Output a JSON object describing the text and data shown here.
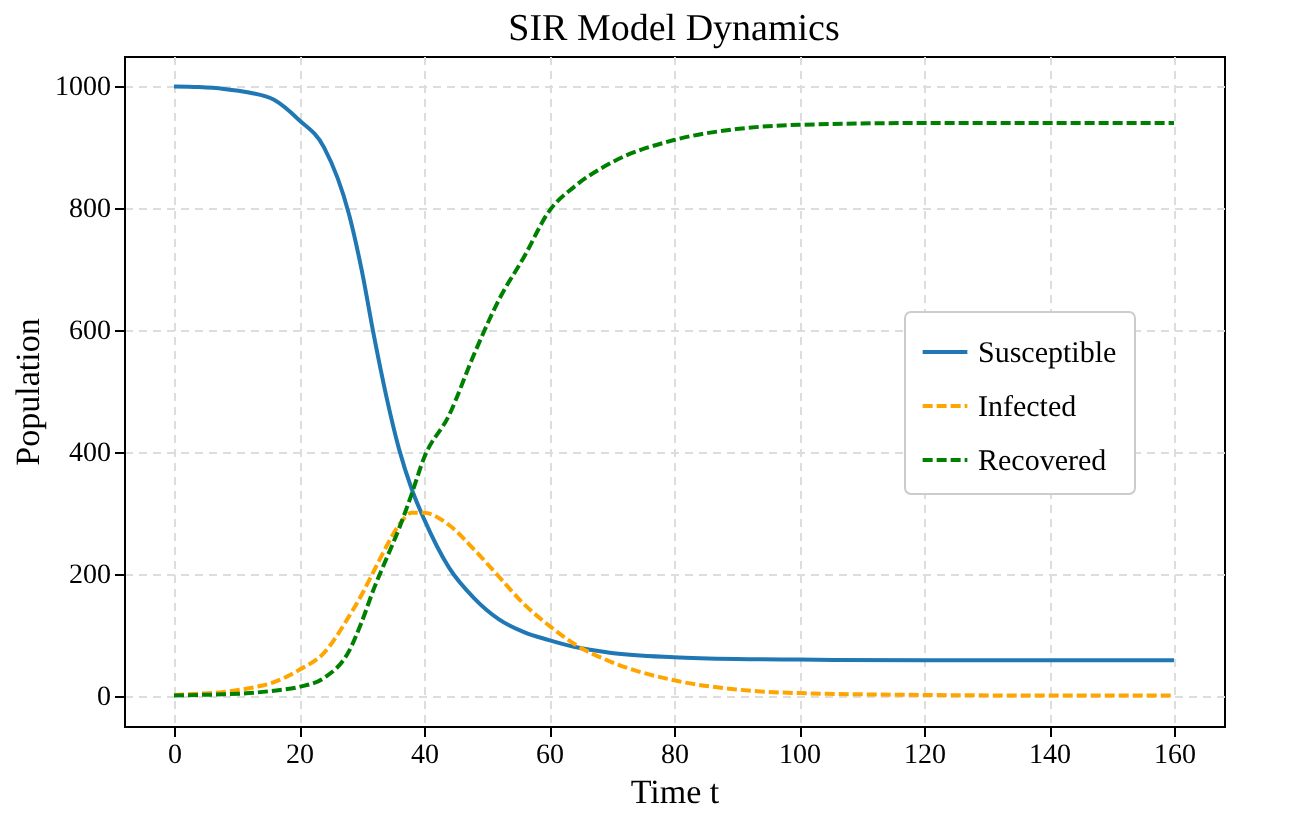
{
  "chart_data": {
    "type": "line",
    "title": "SIR Model Dynamics",
    "xlabel": "Time t",
    "ylabel": "Population",
    "x": [
      0,
      4,
      8,
      12,
      16,
      20,
      24,
      28,
      30,
      32,
      34,
      36,
      38,
      40,
      44,
      48,
      52,
      56,
      60,
      64,
      70,
      80,
      90,
      100,
      120,
      140,
      160
    ],
    "series": [
      {
        "name": "Susceptible",
        "color": "#1f77b4",
        "line_style": "solid",
        "values": [
          1000,
          999,
          996,
          990,
          978,
          945,
          900,
          790,
          700,
          590,
          490,
          405,
          340,
          290,
          210,
          160,
          125,
          104,
          91,
          80,
          70,
          63,
          60,
          59,
          58,
          58,
          58
        ]
      },
      {
        "name": "Infected",
        "color": "#ffa500",
        "line_style": "dashed",
        "values": [
          1,
          3,
          6,
          12,
          22,
          42,
          70,
          130,
          165,
          205,
          245,
          280,
          300,
          300,
          280,
          240,
          195,
          150,
          115,
          85,
          55,
          25,
          10,
          4,
          1,
          0,
          0
        ]
      },
      {
        "name": "Recovered",
        "color": "#008000",
        "line_style": "dashed",
        "values": [
          0,
          1,
          2,
          4,
          8,
          14,
          29,
          73,
          120,
          176,
          225,
          274,
          330,
          390,
          460,
          560,
          650,
          720,
          795,
          835,
          875,
          912,
          930,
          937,
          940,
          940,
          940
        ]
      }
    ],
    "xlim": [
      -8,
      168
    ],
    "ylim": [
      -50,
      1050
    ],
    "xticks": [
      0,
      20,
      40,
      60,
      80,
      100,
      120,
      140,
      160
    ],
    "yticks": [
      0,
      200,
      400,
      600,
      800,
      1000
    ],
    "grid": true,
    "legend": "right",
    "marker": "none"
  }
}
